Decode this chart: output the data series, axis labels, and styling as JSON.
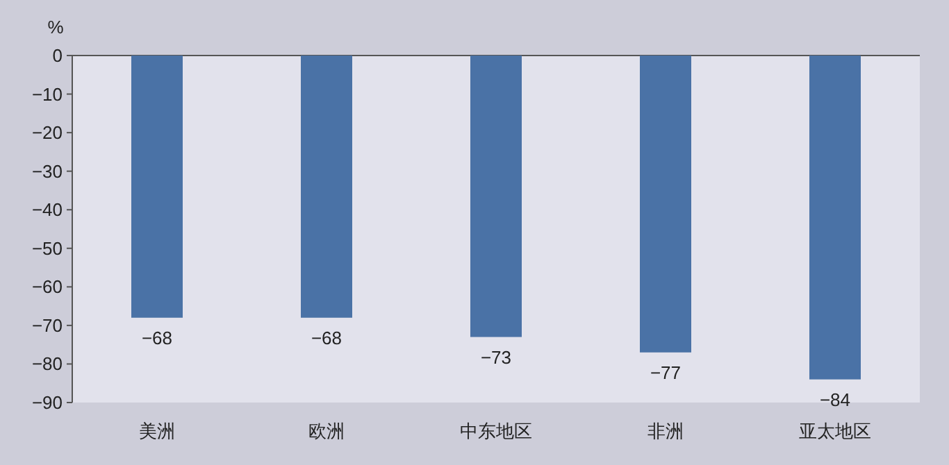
{
  "chart_data": {
    "type": "bar",
    "ylabel": "%",
    "categories": [
      "美洲",
      "欧洲",
      "中东地区",
      "非洲",
      "亚太地区"
    ],
    "values": [
      -68,
      -68,
      -73,
      -77,
      -84
    ],
    "color": "#4a72a6",
    "ylim": [
      -90,
      0
    ],
    "yticks": [
      0,
      -10,
      -20,
      -30,
      -40,
      -50,
      -60,
      -70,
      -80,
      -90
    ],
    "data_labels": true,
    "grid": false
  }
}
